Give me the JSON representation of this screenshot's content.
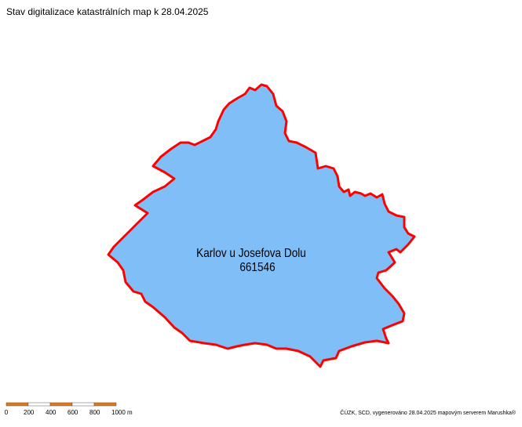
{
  "header": {
    "title": "Stav digitalizace katastrálních map k 28.04.2025"
  },
  "map": {
    "area_name": "Karlov u Josefova Dolu",
    "area_code": "661546"
  },
  "scale_bar": {
    "labels": [
      "0",
      "200",
      "400",
      "600",
      "800",
      "1000 m"
    ]
  },
  "footer": {
    "credits": "ČÚZK, SCD, vygenerováno 28.04.2025 mapovým serverem Marushka®"
  }
}
